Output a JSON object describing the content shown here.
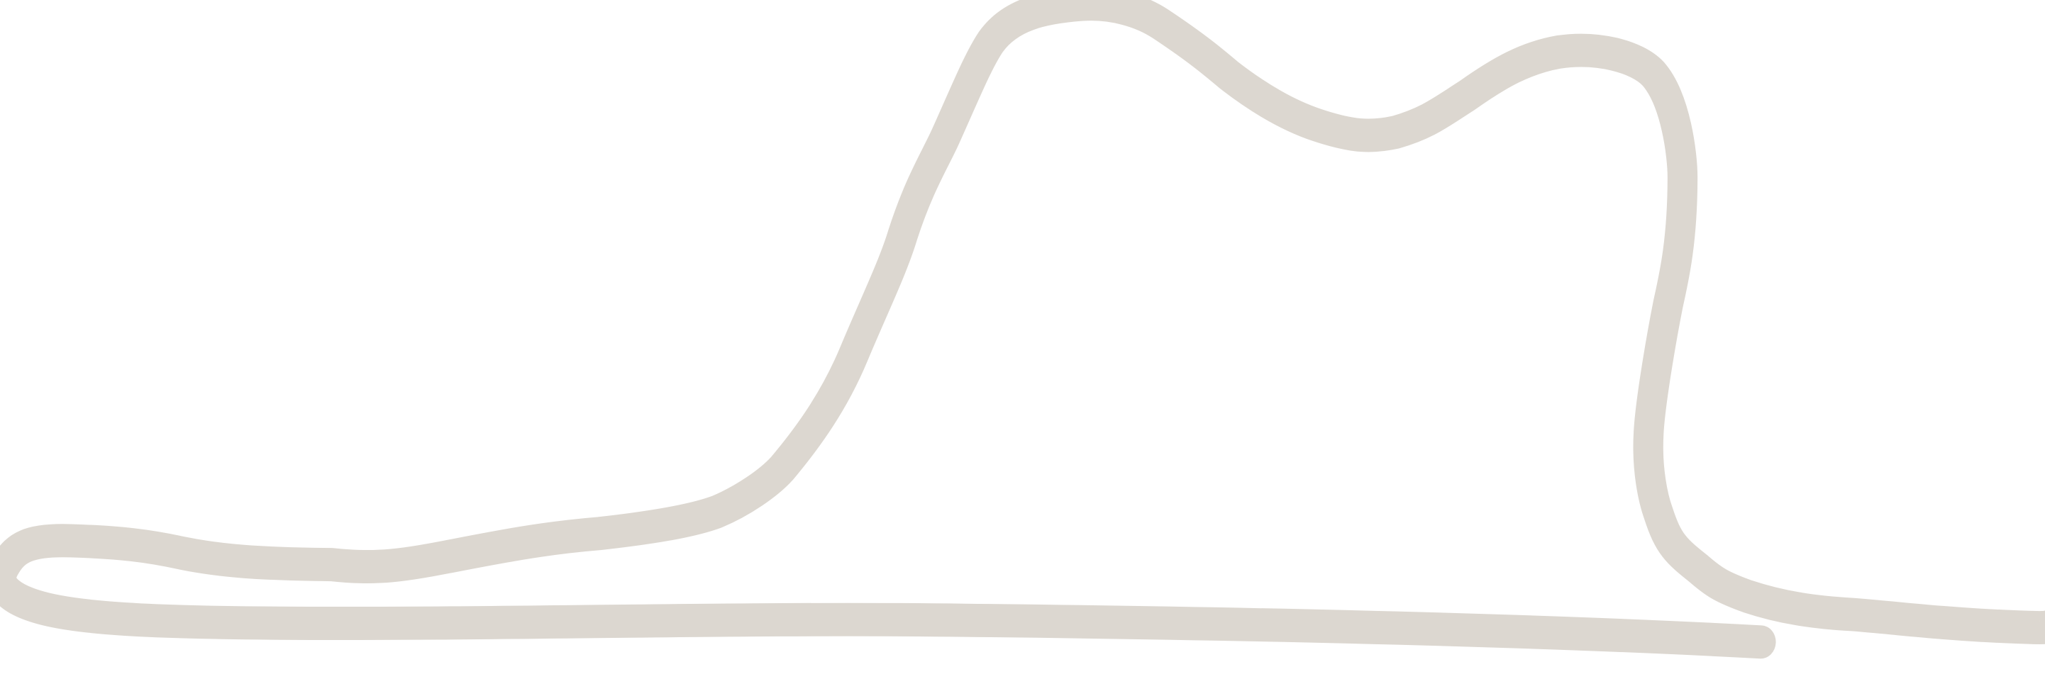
{
  "illustration": {
    "subject": "hat-outline",
    "stroke_color": "#dcd7d0",
    "background_color": "#ffffff"
  }
}
